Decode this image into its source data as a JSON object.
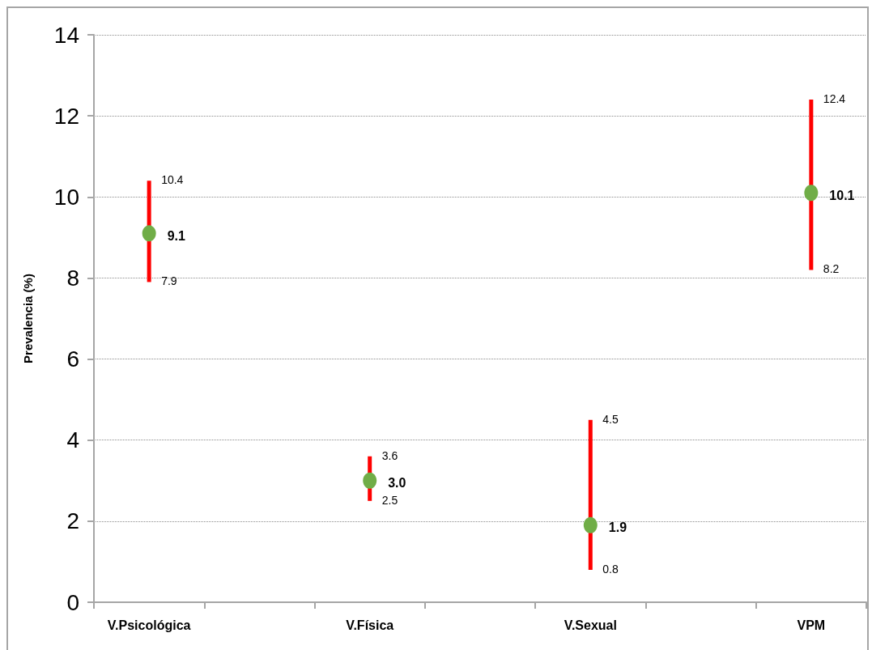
{
  "chart_data": {
    "type": "scatter",
    "ylabel": "Prevalencia (%)",
    "categories": [
      "V.Psicológica",
      null,
      "V.Física",
      null,
      "V.Sexual",
      null,
      "VPM"
    ],
    "values": [
      9.1,
      null,
      3.0,
      null,
      1.9,
      null,
      10.1
    ],
    "value_labels": [
      "9.1",
      null,
      "3.0",
      null,
      "1.9",
      null,
      "10.1"
    ],
    "errors": [
      [
        7.9,
        10.4
      ],
      null,
      [
        2.5,
        3.6
      ],
      null,
      [
        0.8,
        4.5
      ],
      null,
      [
        8.2,
        12.4
      ]
    ],
    "color": "#70ad47",
    "marker": "circle",
    "ylim": [
      0,
      14
    ],
    "yticks": [
      0,
      2,
      4,
      6,
      8,
      10,
      12,
      14
    ],
    "grid": "y",
    "annotations": [
      {
        "text": "10.4",
        "x": "V.Psicológica",
        "y": 10.4
      },
      {
        "text": "7.9",
        "x": "V.Psicológica",
        "y": 7.9
      },
      {
        "text": "3.6",
        "x": "V.Física",
        "y": 3.6
      },
      {
        "text": "2.5",
        "x": "V.Física",
        "y": 2.5
      },
      {
        "text": "4.5",
        "x": "V.Sexual",
        "y": 4.5
      },
      {
        "text": "0.8",
        "x": "V.Sexual",
        "y": 0.8
      },
      {
        "text": "12.4",
        "x": "VPM",
        "y": 12.4
      },
      {
        "text": "8.2",
        "x": "VPM",
        "y": 8.2
      }
    ]
  }
}
